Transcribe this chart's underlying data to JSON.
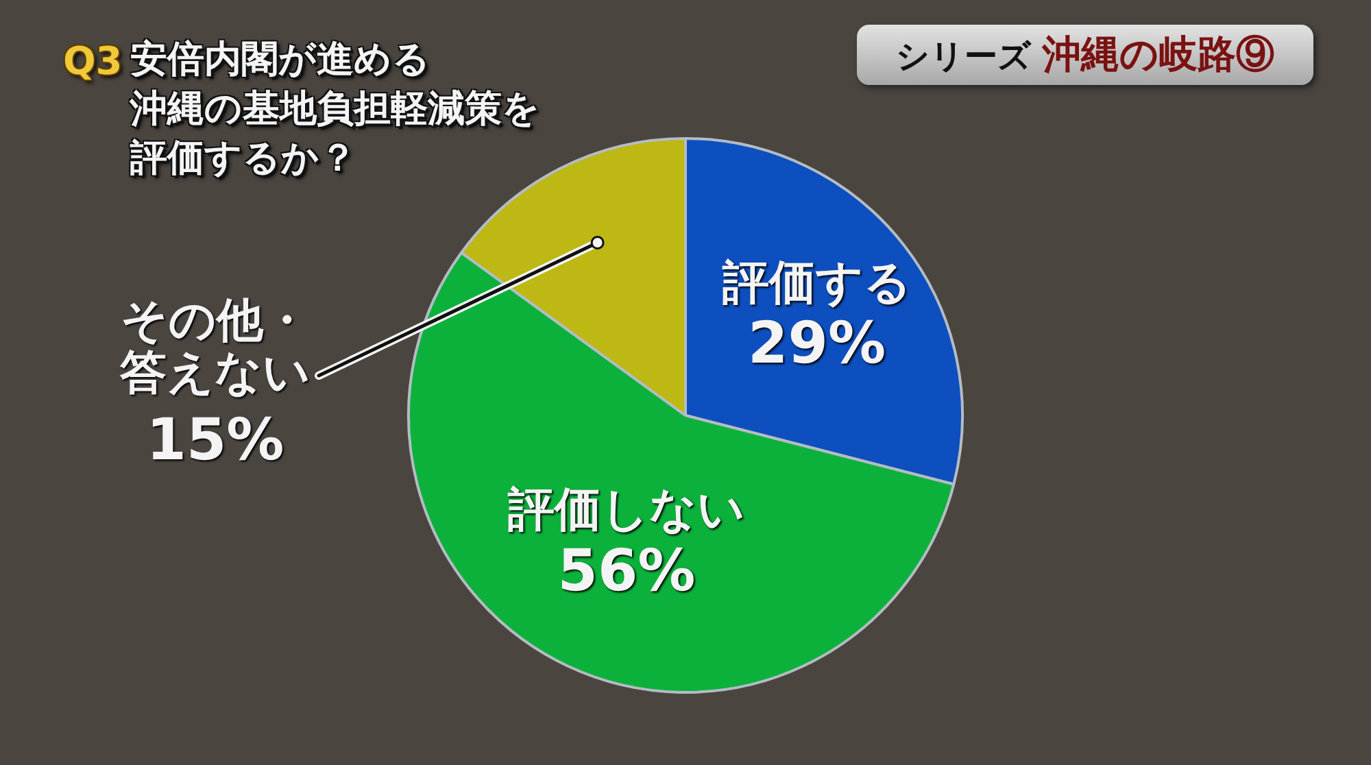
{
  "chart_data": {
    "type": "pie",
    "title": "安倍内閣が進める沖縄の基地負担軽減策を評価するか？",
    "subtitle": "シリーズ 沖縄の岐路⑨",
    "annotations": [
      "Q3"
    ],
    "categories": [
      "評価する",
      "評価しない",
      "その他・答えない"
    ],
    "values": [
      29,
      56,
      15
    ],
    "colors": [
      "#0d4fbf",
      "#0bb13b",
      "#bdb813"
    ],
    "value_labels": [
      "29%",
      "56%",
      "15%"
    ]
  }
}
